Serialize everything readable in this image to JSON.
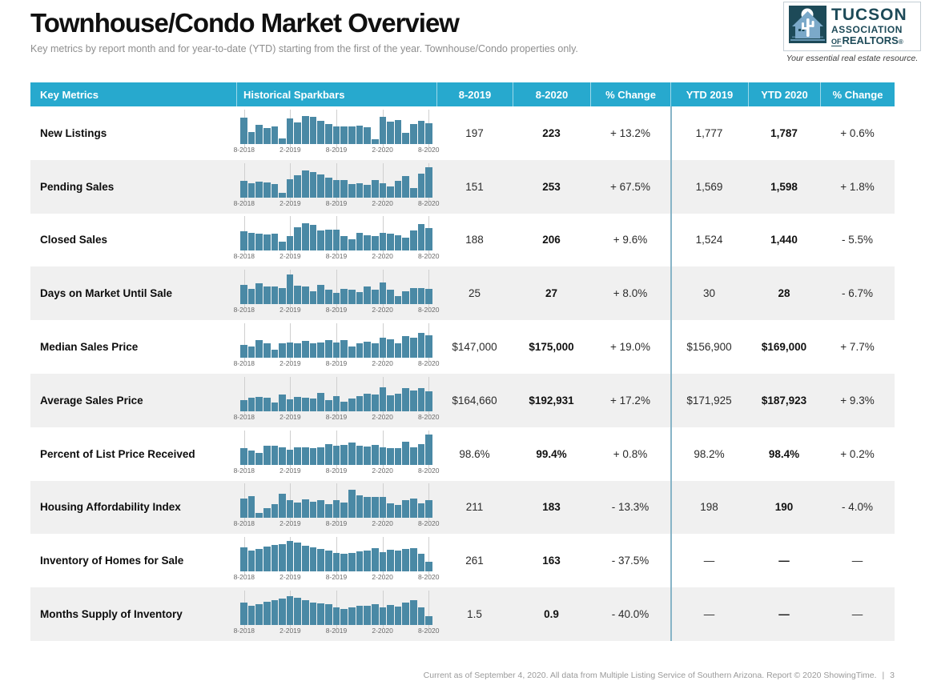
{
  "page": {
    "title": "Townhouse/Condo Market Overview",
    "subtitle": "Key metrics by report month and for year-to-date (YTD) starting from the first of the year. Townhouse/Condo properties only.",
    "footer": "Current as of September 4, 2020. All data from Multiple Listing Service of Southern Arizona. Report © 2020 ShowingTime.",
    "footer_sep": "|",
    "page_number": "3"
  },
  "logo": {
    "line1": "TUCSON",
    "line2": "ASSOCIATION",
    "line3_of": "OF",
    "line3_rest": "REALTORS",
    "reg": "®",
    "tagline": "Your essential real estate resource."
  },
  "colors": {
    "header_bg": "#27a9ce",
    "bar": "#4a89a5",
    "row_alt": "#f0f0f0",
    "divider": "#87b4c7",
    "logo_dark": "#1d4a58",
    "logo_light": "#7ba9c9"
  },
  "table": {
    "columns": [
      "Key Metrics",
      "Historical Sparkbars",
      "8-2019",
      "8-2020",
      "% Change",
      "YTD 2019",
      "YTD 2020",
      "% Change"
    ],
    "spark_axis": [
      "8-2018",
      "2-2019",
      "8-2019",
      "2-2020",
      "8-2020"
    ],
    "rows": [
      {
        "metric": "New Listings",
        "m2019": "197",
        "m2020": "223",
        "m_change": "+ 13.2%",
        "ytd2019": "1,777",
        "ytd2020": "1,787",
        "ytd_change": "+ 0.6%",
        "spark": [
          0.82,
          0.38,
          0.6,
          0.5,
          0.55,
          0.18,
          0.8,
          0.68,
          0.88,
          0.84,
          0.72,
          0.62,
          0.56,
          0.56,
          0.56,
          0.58,
          0.52,
          0.14,
          0.86,
          0.7,
          0.76,
          0.36,
          0.62,
          0.72,
          0.66
        ]
      },
      {
        "metric": "Pending Sales",
        "m2019": "151",
        "m2020": "253",
        "m_change": "+ 67.5%",
        "ytd2019": "1,569",
        "ytd2020": "1,598",
        "ytd_change": "+ 1.8%",
        "spark": [
          0.52,
          0.46,
          0.5,
          0.48,
          0.42,
          0.16,
          0.58,
          0.7,
          0.84,
          0.8,
          0.72,
          0.62,
          0.54,
          0.56,
          0.42,
          0.44,
          0.4,
          0.54,
          0.44,
          0.34,
          0.52,
          0.68,
          0.3,
          0.76,
          0.94
        ]
      },
      {
        "metric": "Closed Sales",
        "m2019": "188",
        "m2020": "206",
        "m_change": "+ 9.6%",
        "ytd2019": "1,524",
        "ytd2020": "1,440",
        "ytd_change": "- 5.5%",
        "spark": [
          0.6,
          0.56,
          0.52,
          0.5,
          0.52,
          0.28,
          0.46,
          0.72,
          0.86,
          0.8,
          0.62,
          0.66,
          0.64,
          0.44,
          0.36,
          0.54,
          0.48,
          0.44,
          0.56,
          0.52,
          0.48,
          0.4,
          0.62,
          0.82,
          0.7
        ]
      },
      {
        "metric": "Days on Market Until Sale",
        "m2019": "25",
        "m2020": "27",
        "m_change": "+ 8.0%",
        "ytd2019": "30",
        "ytd2020": "28",
        "ytd_change": "- 6.7%",
        "spark": [
          0.6,
          0.48,
          0.66,
          0.56,
          0.54,
          0.5,
          0.92,
          0.58,
          0.54,
          0.4,
          0.6,
          0.46,
          0.36,
          0.48,
          0.44,
          0.38,
          0.56,
          0.46,
          0.68,
          0.44,
          0.26,
          0.4,
          0.5,
          0.5,
          0.48
        ]
      },
      {
        "metric": "Median Sales Price",
        "m2019": "$147,000",
        "m2020": "$175,000",
        "m_change": "+ 19.0%",
        "ytd2019": "$156,900",
        "ytd2020": "$169,000",
        "ytd_change": "+ 7.7%",
        "spark": [
          0.4,
          0.36,
          0.56,
          0.46,
          0.24,
          0.44,
          0.48,
          0.44,
          0.52,
          0.44,
          0.48,
          0.56,
          0.48,
          0.56,
          0.34,
          0.46,
          0.5,
          0.46,
          0.62,
          0.58,
          0.46,
          0.68,
          0.62,
          0.78,
          0.7
        ]
      },
      {
        "metric": "Average Sales Price",
        "m2019": "$164,660",
        "m2020": "$192,931",
        "m_change": "+ 17.2%",
        "ytd2019": "$171,925",
        "ytd2020": "$187,923",
        "ytd_change": "+ 9.3%",
        "spark": [
          0.34,
          0.42,
          0.46,
          0.42,
          0.28,
          0.52,
          0.38,
          0.44,
          0.42,
          0.4,
          0.58,
          0.36,
          0.48,
          0.3,
          0.4,
          0.48,
          0.54,
          0.52,
          0.74,
          0.5,
          0.56,
          0.72,
          0.64,
          0.72,
          0.62
        ]
      },
      {
        "metric": "Percent of List Price Received",
        "m2019": "98.6%",
        "m2020": "99.4%",
        "m_change": "+ 0.8%",
        "ytd2019": "98.2%",
        "ytd2020": "98.4%",
        "ytd_change": "+ 0.2%",
        "spark": [
          0.52,
          0.44,
          0.38,
          0.6,
          0.6,
          0.54,
          0.48,
          0.56,
          0.54,
          0.52,
          0.54,
          0.66,
          0.6,
          0.62,
          0.7,
          0.6,
          0.58,
          0.62,
          0.56,
          0.52,
          0.52,
          0.72,
          0.56,
          0.66,
          0.95
        ]
      },
      {
        "metric": "Housing Affordability Index",
        "m2019": "211",
        "m2020": "183",
        "m_change": "- 13.3%",
        "ytd2019": "198",
        "ytd2020": "190",
        "ytd_change": "- 4.0%",
        "spark": [
          0.6,
          0.68,
          0.14,
          0.3,
          0.42,
          0.76,
          0.54,
          0.48,
          0.58,
          0.5,
          0.56,
          0.42,
          0.54,
          0.48,
          0.88,
          0.7,
          0.64,
          0.64,
          0.66,
          0.44,
          0.4,
          0.54,
          0.6,
          0.46,
          0.54
        ]
      },
      {
        "metric": "Inventory of Homes for Sale",
        "m2019": "261",
        "m2020": "163",
        "m_change": "- 37.5%",
        "ytd2019": "—",
        "ytd2020": "—",
        "ytd_change": "—",
        "spark": [
          0.76,
          0.64,
          0.7,
          0.78,
          0.82,
          0.86,
          0.94,
          0.9,
          0.8,
          0.74,
          0.7,
          0.66,
          0.58,
          0.54,
          0.58,
          0.62,
          0.66,
          0.72,
          0.6,
          0.68,
          0.66,
          0.7,
          0.72,
          0.56,
          0.3
        ]
      },
      {
        "metric": "Months Supply of Inventory",
        "m2019": "1.5",
        "m2020": "0.9",
        "m_change": "- 40.0%",
        "ytd2019": "—",
        "ytd2020": "—",
        "ytd_change": "—",
        "spark": [
          0.7,
          0.6,
          0.66,
          0.72,
          0.78,
          0.82,
          0.9,
          0.86,
          0.78,
          0.7,
          0.68,
          0.64,
          0.56,
          0.5,
          0.56,
          0.6,
          0.6,
          0.66,
          0.56,
          0.62,
          0.58,
          0.7,
          0.78,
          0.56,
          0.28
        ]
      }
    ]
  }
}
